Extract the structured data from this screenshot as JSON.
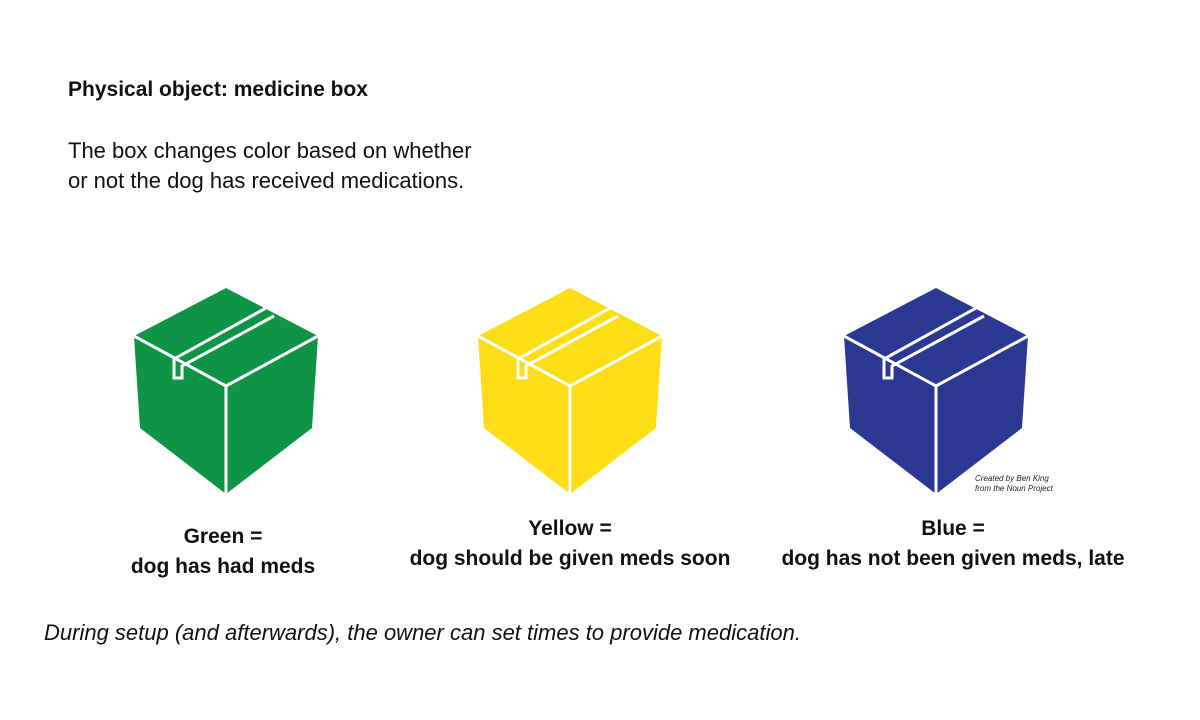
{
  "heading": "Physical object: medicine box",
  "description": "The box changes color based on whether or not the dog has received medications.",
  "boxes": [
    {
      "icon": "box-icon",
      "color": "#0e9444",
      "label_line1": "Green =",
      "label_line2": "dog has had meds"
    },
    {
      "icon": "box-icon",
      "color": "#fede17",
      "label_line1": "Yellow =",
      "label_line2": "dog should be given meds soon"
    },
    {
      "icon": "box-icon",
      "color": "#2a3891",
      "label_line1": "Blue =",
      "label_line2": "dog has not been given meds, late"
    }
  ],
  "credit": {
    "line1": "Created by Ben King",
    "line2": "from the Noun Project"
  },
  "footnote": "During setup (and afterwards), the owner can set times to provide medication."
}
